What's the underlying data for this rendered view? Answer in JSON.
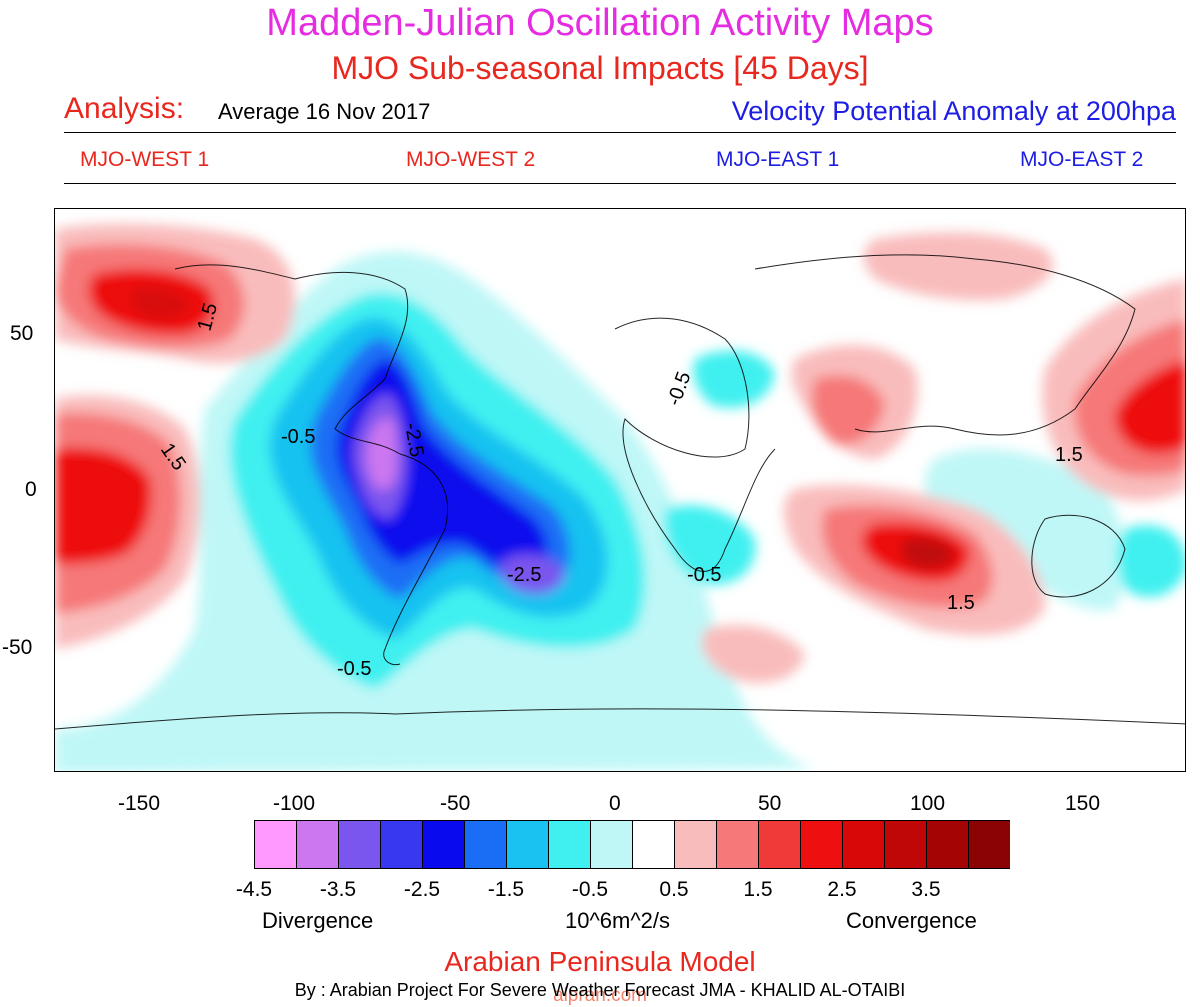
{
  "header": {
    "title": "Madden-Julian Oscillation Activity Maps",
    "subtitle": "MJO Sub-seasonal Impacts [45 Days]",
    "analysis_label": "Analysis:",
    "analysis_date": "Average 16 Nov 2017",
    "variable": "Velocity Potential Anomaly at 200hpa"
  },
  "phases": [
    {
      "label": "MJO-WEST 1",
      "color": "#e8271e"
    },
    {
      "label": "MJO-WEST 2",
      "color": "#e8271e"
    },
    {
      "label": "MJO-EAST 1",
      "color": "#1d1de3"
    },
    {
      "label": "MJO-EAST 2",
      "color": "#1d1de3"
    }
  ],
  "map": {
    "projection": "equirectangular",
    "lon_range": [
      -180,
      180
    ],
    "lat_range": [
      -90,
      90
    ],
    "x_ticks": [
      "-150",
      "-100",
      "-50",
      "0",
      "50",
      "100",
      "150"
    ],
    "y_ticks": [
      "50",
      "0",
      "-50"
    ],
    "contour_labels": [
      "1.5",
      "1.5",
      "1.5",
      "1.5",
      "-2.5",
      "-2.5",
      "-0.5",
      "-0.5",
      "-0.5",
      "-0.5"
    ]
  },
  "colorbar": {
    "levels": [
      "-4.5",
      "-3.5",
      "-2.5",
      "-1.5",
      "-0.5",
      "0.5",
      "1.5",
      "2.5",
      "3.5"
    ],
    "colors": [
      "#ff99ff",
      "#cc77f0",
      "#7a55ee",
      "#3838f0",
      "#0a0aee",
      "#1a6ef5",
      "#19c2f0",
      "#40f0f0",
      "#bff7f7",
      "#ffffff",
      "#f9bcbc",
      "#f67878",
      "#f03a3a",
      "#ee1010",
      "#d80808",
      "#c00707",
      "#a50404",
      "#8c0303"
    ],
    "divergence_label": "Divergence",
    "units": "10^6m^2/s",
    "convergence_label": "Convergence"
  },
  "footer": {
    "model": "Arabian Peninsula Model",
    "credit": "By : Arabian Project For Severe Weather Forecast  JMA - KHALID AL-OTAIBI",
    "watermark": "alpran.com"
  }
}
